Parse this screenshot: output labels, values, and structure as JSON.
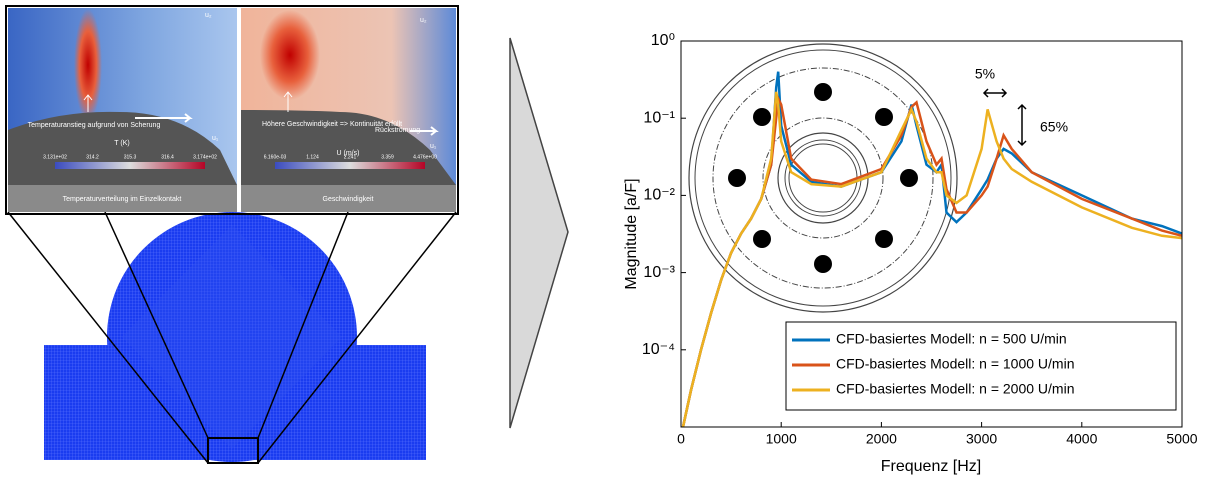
{
  "panels": {
    "temperature": {
      "top_label": "u₂",
      "side_label": "u₁",
      "annotation": "Temperaturanstieg aufgrund von Scherung",
      "colorbar_title": "T (K)",
      "colorbar_ticks": [
        "3.131e+02",
        "314.2",
        "315.3",
        "316.4",
        "3.174e+02"
      ],
      "caption": "Temperaturverteilung im Einzelkontakt"
    },
    "velocity": {
      "top_label": "u₂",
      "side_label": "u₁",
      "annotation": "Höhere Geschwindigkeit => Kontinuität erfüllt",
      "backflow": "Rückströmung",
      "colorbar_title": "U (m/s)",
      "colorbar_ticks": [
        "6.160e-03",
        "1.124",
        "2.241",
        "3.359",
        "4.476e+00"
      ],
      "caption": "Geschwindigkeit"
    }
  },
  "chart_data": {
    "type": "line",
    "xlabel": "Frequenz [Hz]",
    "ylabel": "Magnitude [a/F]",
    "x": [
      20,
      100,
      200,
      300,
      400,
      500,
      600,
      700,
      800,
      900,
      950,
      970,
      1000,
      1100,
      1300,
      1600,
      2000,
      2200,
      2300,
      2350,
      2450,
      2550,
      2600,
      2650,
      2750,
      2850,
      3000,
      3060,
      3150,
      3220,
      3300,
      3500,
      4000,
      4500,
      4800,
      5000
    ],
    "series": [
      {
        "name": "CFD-basiertes Modell: n = 500 U/min",
        "color": "#0072bd",
        "values": [
          1e-05,
          3e-05,
          0.0001,
          0.0003,
          0.0008,
          0.0018,
          0.0032,
          0.005,
          0.009,
          0.025,
          0.25,
          0.4,
          0.08,
          0.025,
          0.015,
          0.013,
          0.02,
          0.05,
          0.15,
          0.08,
          0.025,
          0.02,
          0.025,
          0.006,
          0.0045,
          0.006,
          0.012,
          0.016,
          0.03,
          0.04,
          0.035,
          0.02,
          0.01,
          0.005,
          0.004,
          0.0032
        ]
      },
      {
        "name": "CFD-basiertes Modell: n = 1000 U/min",
        "color": "#d95319",
        "values": [
          1e-05,
          3e-05,
          0.0001,
          0.0003,
          0.0008,
          0.0018,
          0.0032,
          0.005,
          0.009,
          0.025,
          0.1,
          0.18,
          0.15,
          0.03,
          0.016,
          0.014,
          0.022,
          0.06,
          0.14,
          0.16,
          0.05,
          0.025,
          0.03,
          0.012,
          0.006,
          0.006,
          0.01,
          0.013,
          0.03,
          0.06,
          0.04,
          0.02,
          0.009,
          0.005,
          0.0035,
          0.003
        ]
      },
      {
        "name": "CFD-basiertes Modell: n = 2000 U/min",
        "color": "#edb120",
        "values": [
          1e-05,
          3e-05,
          0.0001,
          0.0003,
          0.0008,
          0.0018,
          0.0032,
          0.005,
          0.009,
          0.03,
          0.22,
          0.15,
          0.05,
          0.02,
          0.014,
          0.013,
          0.02,
          0.07,
          0.13,
          0.09,
          0.03,
          0.02,
          0.02,
          0.01,
          0.008,
          0.01,
          0.04,
          0.13,
          0.05,
          0.03,
          0.022,
          0.015,
          0.007,
          0.0038,
          0.003,
          0.0028
        ]
      }
    ],
    "xlim": [
      0,
      5000
    ],
    "xticks": [
      0,
      1000,
      2000,
      3000,
      4000,
      5000
    ],
    "ylim": [
      1e-05,
      1
    ],
    "log_y": true,
    "yticks": [
      {
        "value": 0.0001,
        "label": "10⁻⁴"
      },
      {
        "value": 0.001,
        "label": "10⁻³"
      },
      {
        "value": 0.01,
        "label": "10⁻²"
      },
      {
        "value": 0.1,
        "label": "10⁻¹"
      },
      {
        "value": 1,
        "label": "10⁰"
      }
    ],
    "annotations": [
      "5%",
      "65%"
    ]
  }
}
